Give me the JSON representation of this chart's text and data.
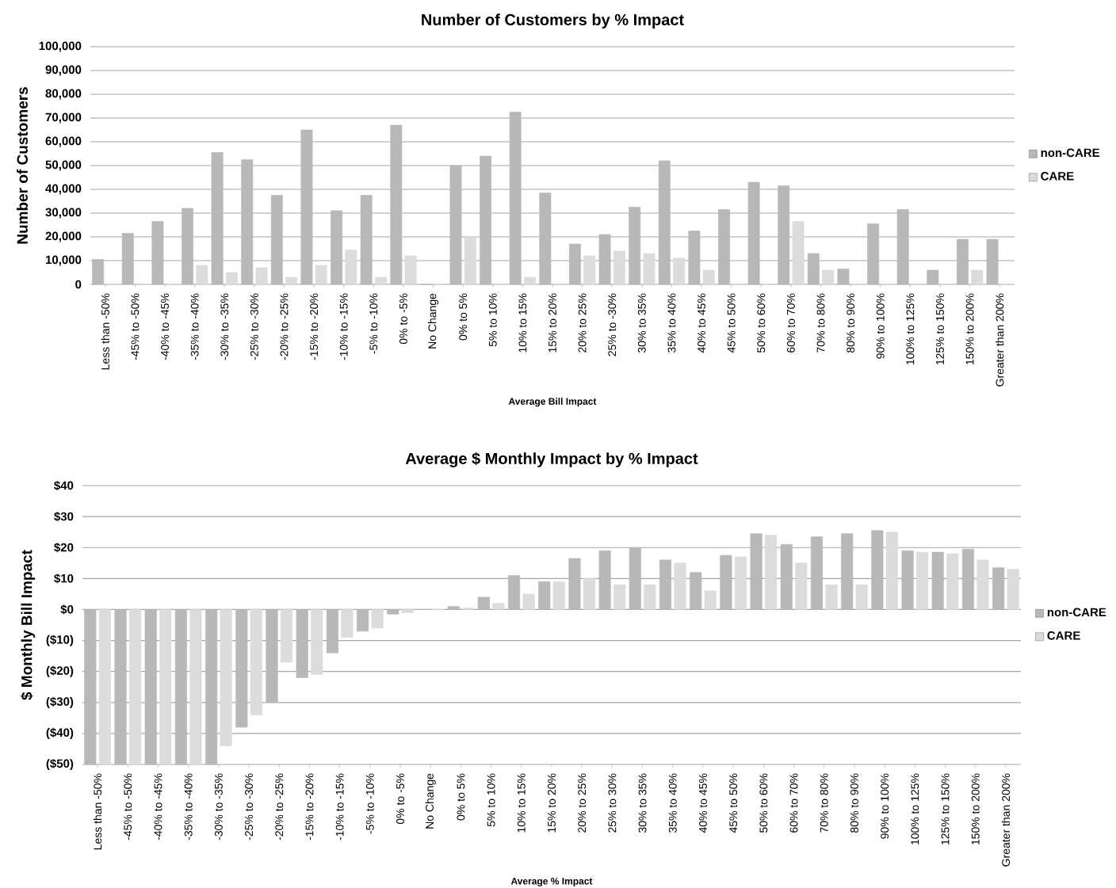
{
  "chart_data": [
    {
      "type": "bar",
      "title": "Number of Customers by % Impact",
      "xlabel": "Average Bill Impact",
      "ylabel": "Number of Customers",
      "categories": [
        "Less than -50%",
        "-45% to -50%",
        "-40% to -45%",
        "-35% to -40%",
        "-30% to -35%",
        "-25% to -30%",
        "-20% to -25%",
        "-15% to -20%",
        "-10% to -15%",
        "-5% to -10%",
        "0% to -5%",
        "No Change",
        "0% to 5%",
        "5% to 10%",
        "10% to 15%",
        "15% to 20%",
        "20% to 25%",
        "25% to -30%",
        "30% to 35%",
        "35% to 40%",
        "40% to 45%",
        "45% to 50%",
        "50% to 60%",
        "60% to 70%",
        "70% to 80%",
        "80% to 90%",
        "90% to 100%",
        "100% to 125%",
        "125% to 150%",
        "150% to 200%",
        "Greater than 200%"
      ],
      "series": [
        {
          "name": "non-CARE",
          "color": "#b8b8b8",
          "values": [
            10500,
            21500,
            26500,
            32000,
            55500,
            52500,
            37500,
            65000,
            31000,
            37500,
            67000,
            0,
            50000,
            54000,
            72500,
            38500,
            17000,
            21000,
            32500,
            52000,
            22500,
            31500,
            43000,
            41500,
            13000,
            6500,
            25500,
            31500,
            6000,
            19000,
            19000
          ]
        },
        {
          "name": "CARE",
          "color": "#dcdcdc",
          "values": [
            0,
            0,
            0,
            8000,
            5000,
            7000,
            3000,
            8000,
            14500,
            3000,
            12000,
            0,
            20000,
            0,
            3000,
            0,
            12000,
            14000,
            13000,
            11000,
            6000,
            0,
            0,
            26500,
            6000,
            0,
            0,
            0,
            0,
            6000,
            0
          ]
        }
      ],
      "ylim": [
        0,
        100000
      ],
      "yticks": [
        {
          "value": 0,
          "label": "0"
        },
        {
          "value": 10000,
          "label": "10,000"
        },
        {
          "value": 20000,
          "label": "20,000"
        },
        {
          "value": 30000,
          "label": "30,000"
        },
        {
          "value": 40000,
          "label": "40,000"
        },
        {
          "value": 50000,
          "label": "50,000"
        },
        {
          "value": 60000,
          "label": "60,000"
        },
        {
          "value": 70000,
          "label": "70,000"
        },
        {
          "value": 80000,
          "label": "80,000"
        },
        {
          "value": 90000,
          "label": "90,000"
        },
        {
          "value": 100000,
          "label": "100,000"
        }
      ],
      "grid": "y",
      "legend": "right"
    },
    {
      "type": "bar",
      "title": "Average $ Monthly Impact by % Impact",
      "xlabel": "Average % Impact",
      "ylabel": "$ Monthly Bill Impact",
      "categories": [
        "Less than -50%",
        "-45% to -50%",
        "-40% to -45%",
        "-35% to -40%",
        "-30% to -35%",
        "-25% to -30%",
        "-20% to -25%",
        "-15% to -20%",
        "-10% to -15%",
        "-5% to -10%",
        "0% to -5%",
        "No Change",
        "0% to 5%",
        "5% to 10%",
        "10% to 15%",
        "15% to 20%",
        "20% to 25%",
        "25% to 30%",
        "30% to 35%",
        "35% to 40%",
        "40% to 45%",
        "45% to 50%",
        "50% to 60%",
        "60% to 70%",
        "70% to 80%",
        "80% to 90%",
        "90% to 100%",
        "100% to 125%",
        "125% to 150%",
        "150% to 200%",
        "Greater than 200%"
      ],
      "series": [
        {
          "name": "non-CARE",
          "color": "#b8b8b8",
          "values": [
            -50,
            -50,
            -50,
            -50,
            -50,
            -38,
            -30,
            -22,
            -14,
            -7,
            -1.5,
            0,
            1,
            4,
            11,
            9,
            16.5,
            19,
            20,
            16,
            12,
            17.5,
            24.5,
            21,
            23.5,
            24.5,
            25.5,
            19,
            18.5,
            19.5,
            13.5
          ]
        },
        {
          "name": "CARE",
          "color": "#dcdcdc",
          "values": [
            -50,
            -50,
            -50,
            -50,
            -44,
            -34,
            -17,
            -21,
            -9,
            -6,
            -1,
            0,
            0.5,
            2,
            5,
            9,
            10,
            8,
            8,
            15,
            6,
            17,
            24,
            15,
            8,
            8,
            25,
            18.5,
            18,
            16,
            13
          ]
        }
      ],
      "ylim": [
        -50,
        40
      ],
      "yticks": [
        {
          "value": -50,
          "label": "($50)"
        },
        {
          "value": -40,
          "label": "($40)"
        },
        {
          "value": -30,
          "label": "($30)"
        },
        {
          "value": -20,
          "label": "($20)"
        },
        {
          "value": -10,
          "label": "($10)"
        },
        {
          "value": 0,
          "label": "$0"
        },
        {
          "value": 10,
          "label": "$10"
        },
        {
          "value": 20,
          "label": "$20"
        },
        {
          "value": 30,
          "label": "$30"
        },
        {
          "value": 40,
          "label": "$40"
        }
      ],
      "grid": "y",
      "legend": "right"
    }
  ]
}
